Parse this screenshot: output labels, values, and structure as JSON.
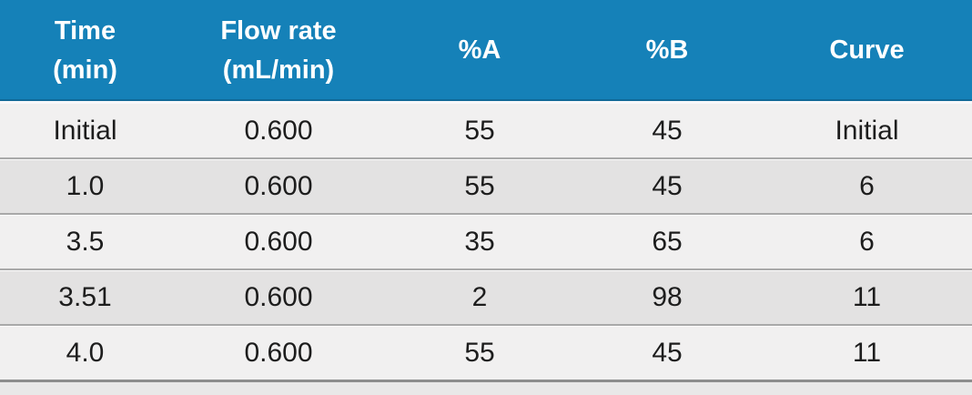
{
  "chart_data": {
    "type": "table",
    "columns": [
      {
        "label_line1": "Time",
        "label_line2": "(min)"
      },
      {
        "label_line1": "Flow rate",
        "label_line2": "(mL/min)"
      },
      {
        "label_line1": "%A",
        "label_line2": ""
      },
      {
        "label_line1": "%B",
        "label_line2": ""
      },
      {
        "label_line1": "Curve",
        "label_line2": ""
      }
    ],
    "rows": [
      [
        "Initial",
        "0.600",
        "55",
        "45",
        "Initial"
      ],
      [
        "1.0",
        "0.600",
        "55",
        "45",
        "6"
      ],
      [
        "3.5",
        "0.600",
        "35",
        "65",
        "6"
      ],
      [
        "3.51",
        "0.600",
        "2",
        "98",
        "11"
      ],
      [
        "4.0",
        "0.600",
        "55",
        "45",
        "11"
      ]
    ]
  },
  "colors": {
    "header_bg": "#1581b8",
    "header_text": "#ffffff",
    "row_light": "#f1f0f0",
    "row_dark": "#e3e2e2",
    "row_separator": "#a9a9a9",
    "table_bottom_border": "#8d8d8d",
    "body_text": "#1d1d1d",
    "page_bg": "#e9e8e8"
  }
}
